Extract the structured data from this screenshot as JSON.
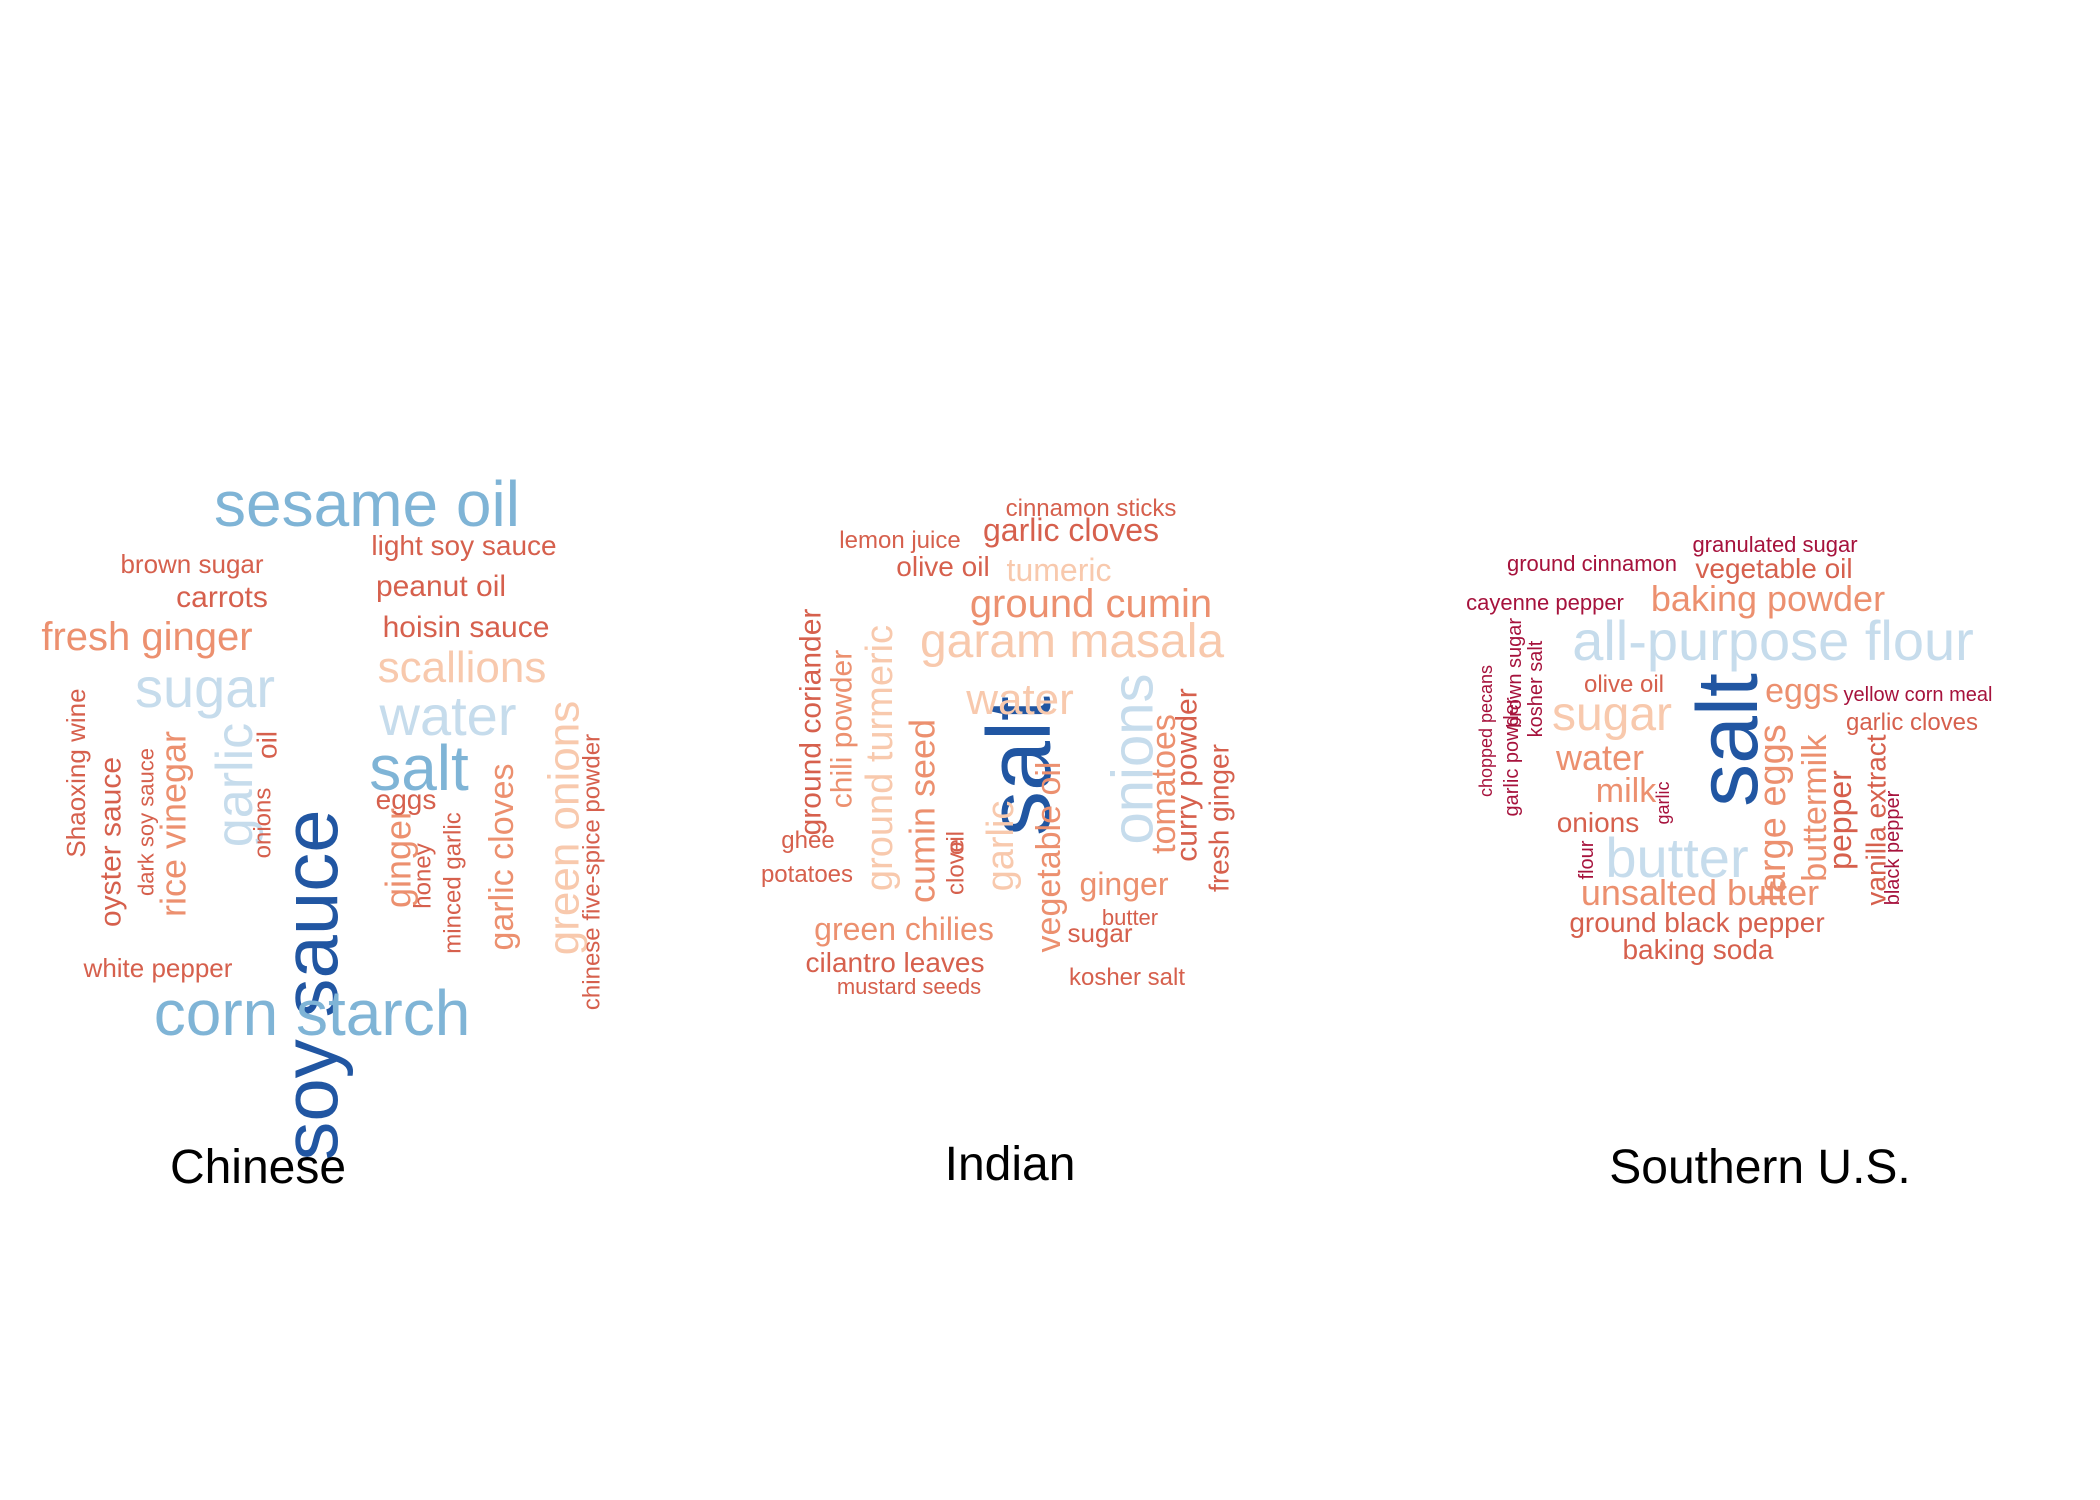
{
  "palette": {
    "darkblue": "#2156a2",
    "midblue": "#7fb4d6",
    "lightblue": "#c6dcec",
    "peach": "#f8c9ad",
    "salmon": "#ec906f",
    "red": "#d6604d",
    "crimson": "#a6123c"
  },
  "clouds": [
    {
      "caption": "Chinese",
      "words": [
        {
          "text": "soy sauce",
          "color": "darkblue"
        },
        {
          "text": "sesame oil",
          "color": "midblue"
        },
        {
          "text": "corn starch",
          "color": "midblue"
        },
        {
          "text": "salt",
          "color": "midblue"
        },
        {
          "text": "sugar",
          "color": "lightblue"
        },
        {
          "text": "water",
          "color": "lightblue"
        },
        {
          "text": "garlic",
          "color": "lightblue"
        },
        {
          "text": "scallions",
          "color": "peach"
        },
        {
          "text": "green onions",
          "color": "peach"
        },
        {
          "text": "fresh ginger",
          "color": "salmon"
        },
        {
          "text": "rice vinegar",
          "color": "salmon"
        },
        {
          "text": "ginger",
          "color": "salmon"
        },
        {
          "text": "garlic cloves",
          "color": "salmon"
        },
        {
          "text": "light soy sauce",
          "color": "red"
        },
        {
          "text": "peanut oil",
          "color": "red"
        },
        {
          "text": "hoisin sauce",
          "color": "red"
        },
        {
          "text": "brown sugar",
          "color": "red"
        },
        {
          "text": "carrots",
          "color": "red"
        },
        {
          "text": "Shaoxing wine",
          "color": "red"
        },
        {
          "text": "oyster sauce",
          "color": "red"
        },
        {
          "text": "dark soy sauce",
          "color": "red"
        },
        {
          "text": "onions",
          "color": "red"
        },
        {
          "text": "oil",
          "color": "red"
        },
        {
          "text": "eggs",
          "color": "red"
        },
        {
          "text": "honey",
          "color": "red"
        },
        {
          "text": "minced garlic",
          "color": "red"
        },
        {
          "text": "white pepper",
          "color": "red"
        },
        {
          "text": "chinese five-spice powder",
          "color": "red"
        }
      ]
    },
    {
      "caption": "Indian",
      "words": [
        {
          "text": "salt",
          "color": "darkblue"
        },
        {
          "text": "onions",
          "color": "lightblue"
        },
        {
          "text": "garam masala",
          "color": "peach"
        },
        {
          "text": "water",
          "color": "peach"
        },
        {
          "text": "ground turmeric",
          "color": "peach"
        },
        {
          "text": "garlic",
          "color": "peach"
        },
        {
          "text": "tumeric",
          "color": "peach"
        },
        {
          "text": "ground cumin",
          "color": "salmon"
        },
        {
          "text": "cumin seed",
          "color": "salmon"
        },
        {
          "text": "vegetable oil",
          "color": "salmon"
        },
        {
          "text": "tomatoes",
          "color": "salmon"
        },
        {
          "text": "ginger",
          "color": "salmon"
        },
        {
          "text": "green chilies",
          "color": "salmon"
        },
        {
          "text": "chili powder",
          "color": "salmon"
        },
        {
          "text": "garlic cloves",
          "color": "red"
        },
        {
          "text": "cinnamon sticks",
          "color": "red"
        },
        {
          "text": "lemon juice",
          "color": "red"
        },
        {
          "text": "olive oil",
          "color": "red"
        },
        {
          "text": "ground coriander",
          "color": "red"
        },
        {
          "text": "curry powder",
          "color": "red"
        },
        {
          "text": "fresh ginger",
          "color": "red"
        },
        {
          "text": "oil",
          "color": "red"
        },
        {
          "text": "clove",
          "color": "red"
        },
        {
          "text": "ghee",
          "color": "red"
        },
        {
          "text": "potatoes",
          "color": "red"
        },
        {
          "text": "cilantro leaves",
          "color": "red"
        },
        {
          "text": "mustard seeds",
          "color": "red"
        },
        {
          "text": "sugar",
          "color": "red"
        },
        {
          "text": "butter",
          "color": "red"
        },
        {
          "text": "kosher salt",
          "color": "red"
        }
      ]
    },
    {
      "caption": "Southern U.S.",
      "words": [
        {
          "text": "salt",
          "color": "darkblue"
        },
        {
          "text": "all-purpose flour",
          "color": "lightblue"
        },
        {
          "text": "butter",
          "color": "lightblue"
        },
        {
          "text": "sugar",
          "color": "peach"
        },
        {
          "text": "baking powder",
          "color": "salmon"
        },
        {
          "text": "eggs",
          "color": "salmon"
        },
        {
          "text": "water",
          "color": "salmon"
        },
        {
          "text": "milk",
          "color": "salmon"
        },
        {
          "text": "large eggs",
          "color": "salmon"
        },
        {
          "text": "unsalted butter",
          "color": "salmon"
        },
        {
          "text": "buttermilk",
          "color": "salmon"
        },
        {
          "text": "vegetable oil",
          "color": "red"
        },
        {
          "text": "onions",
          "color": "red"
        },
        {
          "text": "olive oil",
          "color": "red"
        },
        {
          "text": "pepper",
          "color": "red"
        },
        {
          "text": "ground black pepper",
          "color": "red"
        },
        {
          "text": "baking soda",
          "color": "red"
        },
        {
          "text": "garlic cloves",
          "color": "red"
        },
        {
          "text": "vanilla extract",
          "color": "red"
        },
        {
          "text": "granulated sugar",
          "color": "crimson"
        },
        {
          "text": "ground cinnamon",
          "color": "crimson"
        },
        {
          "text": "cayenne pepper",
          "color": "crimson"
        },
        {
          "text": "yellow corn meal",
          "color": "crimson"
        },
        {
          "text": "chopped pecans",
          "color": "crimson"
        },
        {
          "text": "garlic powder",
          "color": "crimson"
        },
        {
          "text": "brown sugar",
          "color": "crimson"
        },
        {
          "text": "kosher salt",
          "color": "crimson"
        },
        {
          "text": "garlic",
          "color": "crimson"
        },
        {
          "text": "flour",
          "color": "crimson"
        },
        {
          "text": "black pepper",
          "color": "crimson"
        }
      ]
    }
  ]
}
